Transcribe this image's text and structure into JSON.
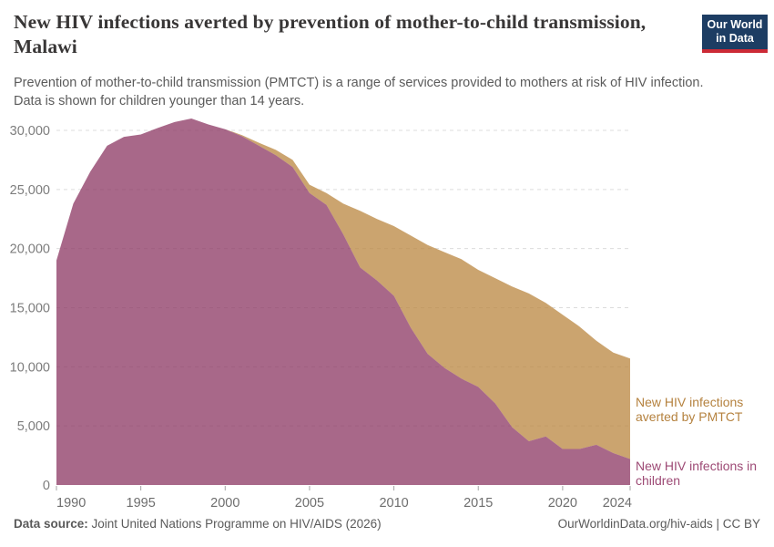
{
  "header": {
    "title": "New HIV infections averted by prevention of mother-to-child transmission, Malawi",
    "subtitle_line1": "Prevention of mother-to-child transmission (PMTCT) is a range of services provided to mothers at risk of HIV infection.",
    "subtitle_line2": "Data is shown for children younger than 14 years.",
    "logo": {
      "line1": "Our World",
      "line2": "in Data",
      "bg_color": "#1d3d63",
      "accent_color": "#cc2a36"
    }
  },
  "chart_data": {
    "type": "area",
    "stacked": true,
    "title": "New HIV infections averted by prevention of mother-to-child transmission, Malawi",
    "xlabel": "",
    "ylabel": "",
    "xlim": [
      1990,
      2024
    ],
    "ylim": [
      0,
      30000
    ],
    "xticks": [
      1990,
      1995,
      2000,
      2005,
      2010,
      2015,
      2020,
      2024
    ],
    "yticks": [
      0,
      5000,
      10000,
      15000,
      20000,
      25000,
      30000
    ],
    "grid": "horizontal-dashed",
    "grid_color": "#dcdcdc",
    "axis_text_color": "#6e6e6e",
    "x": [
      1990,
      1991,
      1992,
      1993,
      1994,
      1995,
      1996,
      1997,
      1998,
      1999,
      2000,
      2001,
      2002,
      2003,
      2004,
      2005,
      2006,
      2007,
      2008,
      2009,
      2010,
      2011,
      2012,
      2013,
      2014,
      2015,
      2016,
      2017,
      2018,
      2019,
      2020,
      2021,
      2022,
      2023,
      2024
    ],
    "series": [
      {
        "name": "New HIV infections in children",
        "color": "#8f3d68",
        "label_color": "#9d4a75",
        "values": [
          19000,
          23800,
          26500,
          28700,
          29450,
          29650,
          30200,
          30700,
          31000,
          30500,
          30100,
          29500,
          28700,
          27900,
          26900,
          24700,
          23700,
          21200,
          18400,
          17300,
          16000,
          13300,
          11100,
          9900,
          9000,
          8300,
          6900,
          4900,
          3700,
          4100,
          3050,
          3050,
          3400,
          2700,
          2200
        ]
      },
      {
        "name": "New HIV infections averted by PMTCT",
        "color": "#bd8a47",
        "label_color": "#b5823f",
        "values": [
          0,
          0,
          0,
          0,
          0,
          0,
          0,
          0,
          0,
          0,
          0,
          100,
          250,
          450,
          600,
          700,
          1000,
          2600,
          4800,
          5200,
          5900,
          7800,
          9200,
          9800,
          10100,
          9900,
          10600,
          11900,
          12500,
          11300,
          11350,
          10350,
          8800,
          8500,
          8500
        ]
      }
    ],
    "legend_position": "right-of-plot"
  },
  "footer": {
    "datasource_label": "Data source:",
    "datasource_text": " Joint United Nations Programme on HIV/AIDS (2026)",
    "right": "OurWorldinData.org/hiv-aids | CC BY"
  }
}
